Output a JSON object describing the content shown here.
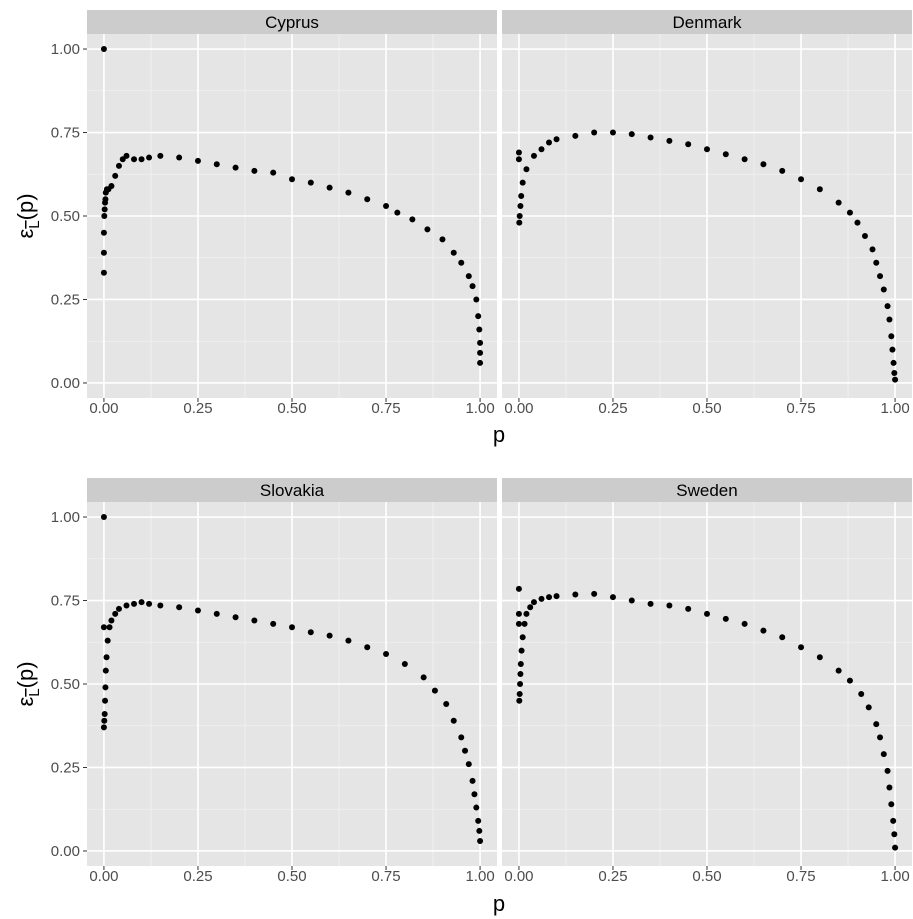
{
  "chart_data": [
    {
      "type": "scatter",
      "facets": [
        {
          "title": "Cyprus",
          "points": [
            [
              0.0,
              1.0
            ],
            [
              0.0,
              0.33
            ],
            [
              0.0,
              0.39
            ],
            [
              0.0,
              0.45
            ],
            [
              0.001,
              0.5
            ],
            [
              0.002,
              0.52
            ],
            [
              0.003,
              0.54
            ],
            [
              0.004,
              0.55
            ],
            [
              0.005,
              0.57
            ],
            [
              0.008,
              0.58
            ],
            [
              0.012,
              0.58
            ],
            [
              0.02,
              0.59
            ],
            [
              0.03,
              0.62
            ],
            [
              0.04,
              0.65
            ],
            [
              0.05,
              0.67
            ],
            [
              0.06,
              0.68
            ],
            [
              0.08,
              0.67
            ],
            [
              0.1,
              0.67
            ],
            [
              0.12,
              0.675
            ],
            [
              0.15,
              0.68
            ],
            [
              0.2,
              0.675
            ],
            [
              0.25,
              0.665
            ],
            [
              0.3,
              0.655
            ],
            [
              0.35,
              0.645
            ],
            [
              0.4,
              0.635
            ],
            [
              0.45,
              0.63
            ],
            [
              0.5,
              0.61
            ],
            [
              0.55,
              0.6
            ],
            [
              0.6,
              0.585
            ],
            [
              0.65,
              0.57
            ],
            [
              0.7,
              0.55
            ],
            [
              0.75,
              0.53
            ],
            [
              0.78,
              0.51
            ],
            [
              0.82,
              0.49
            ],
            [
              0.86,
              0.46
            ],
            [
              0.9,
              0.43
            ],
            [
              0.93,
              0.39
            ],
            [
              0.95,
              0.36
            ],
            [
              0.97,
              0.32
            ],
            [
              0.98,
              0.29
            ],
            [
              0.99,
              0.25
            ],
            [
              0.995,
              0.2
            ],
            [
              0.998,
              0.16
            ],
            [
              1.0,
              0.12
            ],
            [
              1.0,
              0.09
            ],
            [
              1.0,
              0.06
            ]
          ]
        },
        {
          "title": "Denmark",
          "points": [
            [
              0.0,
              0.69
            ],
            [
              0.0,
              0.67
            ],
            [
              0.001,
              0.48
            ],
            [
              0.002,
              0.5
            ],
            [
              0.004,
              0.53
            ],
            [
              0.006,
              0.56
            ],
            [
              0.01,
              0.6
            ],
            [
              0.02,
              0.64
            ],
            [
              0.04,
              0.68
            ],
            [
              0.06,
              0.7
            ],
            [
              0.08,
              0.72
            ],
            [
              0.1,
              0.73
            ],
            [
              0.15,
              0.74
            ],
            [
              0.2,
              0.75
            ],
            [
              0.25,
              0.75
            ],
            [
              0.3,
              0.745
            ],
            [
              0.35,
              0.735
            ],
            [
              0.4,
              0.725
            ],
            [
              0.45,
              0.715
            ],
            [
              0.5,
              0.7
            ],
            [
              0.55,
              0.685
            ],
            [
              0.6,
              0.67
            ],
            [
              0.65,
              0.655
            ],
            [
              0.7,
              0.635
            ],
            [
              0.75,
              0.61
            ],
            [
              0.8,
              0.58
            ],
            [
              0.85,
              0.54
            ],
            [
              0.88,
              0.51
            ],
            [
              0.9,
              0.48
            ],
            [
              0.92,
              0.44
            ],
            [
              0.94,
              0.4
            ],
            [
              0.95,
              0.36
            ],
            [
              0.96,
              0.32
            ],
            [
              0.97,
              0.28
            ],
            [
              0.98,
              0.23
            ],
            [
              0.985,
              0.19
            ],
            [
              0.99,
              0.14
            ],
            [
              0.993,
              0.1
            ],
            [
              0.996,
              0.06
            ],
            [
              0.998,
              0.03
            ],
            [
              1.0,
              0.01
            ]
          ]
        },
        {
          "title": "Slovakia",
          "points": [
            [
              0.0,
              1.0
            ],
            [
              0.0,
              0.67
            ],
            [
              0.0,
              0.37
            ],
            [
              0.001,
              0.39
            ],
            [
              0.002,
              0.41
            ],
            [
              0.003,
              0.45
            ],
            [
              0.004,
              0.49
            ],
            [
              0.005,
              0.54
            ],
            [
              0.007,
              0.58
            ],
            [
              0.01,
              0.63
            ],
            [
              0.015,
              0.67
            ],
            [
              0.02,
              0.69
            ],
            [
              0.03,
              0.71
            ],
            [
              0.04,
              0.725
            ],
            [
              0.06,
              0.735
            ],
            [
              0.08,
              0.74
            ],
            [
              0.1,
              0.745
            ],
            [
              0.12,
              0.74
            ],
            [
              0.15,
              0.735
            ],
            [
              0.2,
              0.73
            ],
            [
              0.25,
              0.72
            ],
            [
              0.3,
              0.71
            ],
            [
              0.35,
              0.7
            ],
            [
              0.4,
              0.69
            ],
            [
              0.45,
              0.68
            ],
            [
              0.5,
              0.67
            ],
            [
              0.55,
              0.655
            ],
            [
              0.6,
              0.645
            ],
            [
              0.65,
              0.63
            ],
            [
              0.7,
              0.61
            ],
            [
              0.75,
              0.59
            ],
            [
              0.8,
              0.56
            ],
            [
              0.85,
              0.52
            ],
            [
              0.88,
              0.48
            ],
            [
              0.91,
              0.44
            ],
            [
              0.93,
              0.39
            ],
            [
              0.95,
              0.34
            ],
            [
              0.96,
              0.3
            ],
            [
              0.97,
              0.26
            ],
            [
              0.98,
              0.21
            ],
            [
              0.985,
              0.17
            ],
            [
              0.99,
              0.13
            ],
            [
              0.995,
              0.09
            ],
            [
              0.998,
              0.06
            ],
            [
              1.0,
              0.03
            ]
          ]
        },
        {
          "title": "Sweden",
          "points": [
            [
              0.0,
              0.785
            ],
            [
              0.0,
              0.71
            ],
            [
              0.0,
              0.68
            ],
            [
              0.001,
              0.45
            ],
            [
              0.002,
              0.47
            ],
            [
              0.003,
              0.5
            ],
            [
              0.004,
              0.53
            ],
            [
              0.005,
              0.56
            ],
            [
              0.007,
              0.6
            ],
            [
              0.01,
              0.64
            ],
            [
              0.015,
              0.68
            ],
            [
              0.02,
              0.71
            ],
            [
              0.03,
              0.73
            ],
            [
              0.04,
              0.745
            ],
            [
              0.06,
              0.755
            ],
            [
              0.08,
              0.76
            ],
            [
              0.1,
              0.763
            ],
            [
              0.15,
              0.768
            ],
            [
              0.2,
              0.77
            ],
            [
              0.25,
              0.76
            ],
            [
              0.3,
              0.75
            ],
            [
              0.35,
              0.74
            ],
            [
              0.4,
              0.735
            ],
            [
              0.45,
              0.725
            ],
            [
              0.5,
              0.71
            ],
            [
              0.55,
              0.695
            ],
            [
              0.6,
              0.68
            ],
            [
              0.65,
              0.66
            ],
            [
              0.7,
              0.64
            ],
            [
              0.75,
              0.61
            ],
            [
              0.8,
              0.58
            ],
            [
              0.85,
              0.54
            ],
            [
              0.88,
              0.51
            ],
            [
              0.91,
              0.47
            ],
            [
              0.93,
              0.43
            ],
            [
              0.95,
              0.38
            ],
            [
              0.96,
              0.34
            ],
            [
              0.97,
              0.29
            ],
            [
              0.98,
              0.24
            ],
            [
              0.985,
              0.19
            ],
            [
              0.99,
              0.14
            ],
            [
              0.995,
              0.09
            ],
            [
              0.998,
              0.05
            ],
            [
              1.0,
              0.01
            ]
          ]
        }
      ],
      "xlabel": "p",
      "ylabel": "ε",
      "ylabel_sub": "L",
      "ylabel_suffix": "(p)",
      "xlim": [
        0,
        1
      ],
      "ylim": [
        0,
        1
      ],
      "xticks": [
        0,
        0.25,
        0.5,
        0.75,
        1
      ],
      "xtick_labels": [
        "0.00",
        "0.25",
        "0.50",
        "0.75",
        "1.00"
      ],
      "yticks": [
        0,
        0.25,
        0.5,
        0.75,
        1
      ],
      "ytick_labels": [
        "0.00",
        "0.25",
        "0.50",
        "0.75",
        "1.00"
      ],
      "grid": true,
      "colors": {
        "panel_bg": "#e5e5e5",
        "strip_bg": "#cccccc",
        "grid_major": "#ffffff",
        "grid_minor": "#f2f2f2",
        "point": "#000000",
        "tick_text": "#4d4d4d",
        "text": "#000000"
      }
    }
  ]
}
